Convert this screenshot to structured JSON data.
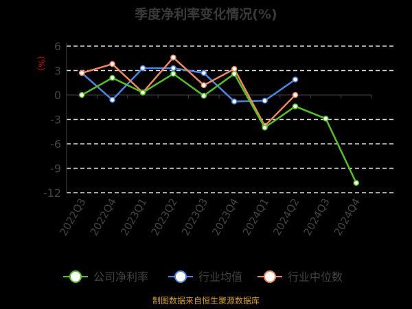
{
  "chart_data": {
    "type": "line",
    "title": "季度净利率变化情况(%)",
    "ylabel": "(%)",
    "categories": [
      "2022Q3",
      "2022Q4",
      "2023Q1",
      "2023Q2",
      "2023Q3",
      "2023Q4",
      "2024Q1",
      "2024Q2",
      "2024Q3",
      "2024Q4"
    ],
    "yticks": [
      6,
      3,
      0,
      -3,
      -6,
      -9,
      -12
    ],
    "ylim": [
      -12,
      6
    ],
    "grid": true,
    "legend_position": "bottom",
    "series": [
      {
        "name": "公司净利率",
        "color": "#52c41a",
        "values": [
          0.0,
          2.1,
          0.3,
          2.6,
          -0.1,
          2.6,
          -4.0,
          -1.4,
          -2.9,
          -10.8
        ]
      },
      {
        "name": "行业均值",
        "color": "#4a86e8",
        "values": [
          2.7,
          -0.6,
          3.3,
          3.3,
          2.7,
          -0.8,
          -0.7,
          1.9,
          null,
          null
        ]
      },
      {
        "name": "行业中位数",
        "color": "#f4875a",
        "values": [
          2.7,
          3.8,
          0.3,
          4.6,
          1.2,
          3.2,
          -3.8,
          0.0,
          null,
          null
        ]
      }
    ]
  },
  "footer": {
    "source": "制图数据来自恒生聚源数据库"
  }
}
